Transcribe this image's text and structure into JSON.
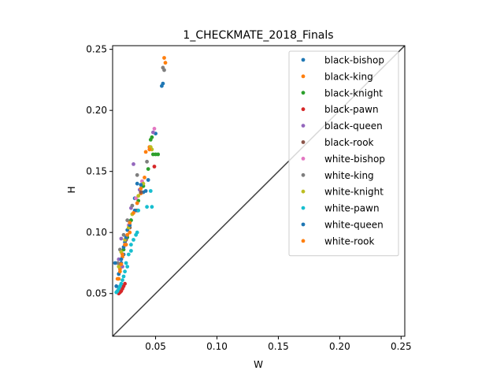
{
  "chart_data": {
    "type": "scatter",
    "title": "1_CHECKMATE_2018_Finals",
    "xlabel": "W",
    "ylabel": "H",
    "xlim": [
      0.015,
      0.253
    ],
    "ylim": [
      0.015,
      0.253
    ],
    "xticks": [
      0.05,
      0.1,
      0.15,
      0.2,
      0.25
    ],
    "xtick_labels": [
      "0.05",
      "0.10",
      "0.15",
      "0.20",
      "0.25"
    ],
    "yticks": [
      0.05,
      0.1,
      0.15,
      0.2,
      0.25
    ],
    "ytick_labels": [
      "0.05",
      "0.10",
      "0.15",
      "0.20",
      "0.25"
    ],
    "reference_line": {
      "from": [
        0.015,
        0.015
      ],
      "to": [
        0.253,
        0.253
      ],
      "color": "#3f3f3f"
    },
    "legend": {
      "placement": "top-right"
    },
    "series": [
      {
        "name": "black-bishop",
        "color": "#1f77b4",
        "points": [
          [
            0.056,
            0.222
          ],
          [
            0.055,
            0.22
          ],
          [
            0.05,
            0.181
          ],
          [
            0.035,
            0.14
          ],
          [
            0.033,
            0.128
          ],
          [
            0.027,
            0.102
          ],
          [
            0.025,
            0.092
          ],
          [
            0.022,
            0.075
          ],
          [
            0.02,
            0.066
          ],
          [
            0.024,
            0.082
          ],
          [
            0.03,
            0.11
          ],
          [
            0.04,
            0.133
          ]
        ]
      },
      {
        "name": "black-king",
        "color": "#ff7f0e",
        "points": [
          [
            0.057,
            0.243
          ],
          [
            0.058,
            0.239
          ],
          [
            0.045,
            0.17
          ],
          [
            0.042,
            0.166
          ],
          [
            0.038,
            0.132
          ],
          [
            0.034,
            0.118
          ],
          [
            0.029,
            0.1
          ],
          [
            0.026,
            0.09
          ],
          [
            0.023,
            0.08
          ],
          [
            0.021,
            0.07
          ],
          [
            0.019,
            0.062
          ]
        ]
      },
      {
        "name": "black-knight",
        "color": "#2ca02c",
        "points": [
          [
            0.047,
            0.178
          ],
          [
            0.046,
            0.176
          ],
          [
            0.05,
            0.164
          ],
          [
            0.052,
            0.164
          ],
          [
            0.048,
            0.164
          ],
          [
            0.044,
            0.152
          ],
          [
            0.04,
            0.138
          ],
          [
            0.036,
            0.126
          ],
          [
            0.03,
            0.11
          ],
          [
            0.027,
            0.096
          ],
          [
            0.024,
            0.086
          ]
        ]
      },
      {
        "name": "black-pawn",
        "color": "#d62728",
        "points": [
          [
            0.049,
            0.154
          ],
          [
            0.02,
            0.05
          ],
          [
            0.021,
            0.051
          ],
          [
            0.022,
            0.052
          ],
          [
            0.023,
            0.054
          ],
          [
            0.019,
            0.052
          ],
          [
            0.025,
            0.058
          ],
          [
            0.024,
            0.056
          ]
        ]
      },
      {
        "name": "black-queen",
        "color": "#9467bd",
        "points": [
          [
            0.048,
            0.182
          ],
          [
            0.032,
            0.156
          ],
          [
            0.037,
            0.135
          ],
          [
            0.03,
            0.12
          ],
          [
            0.022,
            0.095
          ],
          [
            0.02,
            0.078
          ],
          [
            0.023,
            0.072
          ]
        ]
      },
      {
        "name": "black-rook",
        "color": "#8c564b",
        "points": [
          [
            0.038,
            0.133
          ],
          [
            0.035,
            0.118
          ],
          [
            0.029,
            0.104
          ],
          [
            0.026,
            0.094
          ],
          [
            0.023,
            0.082
          ],
          [
            0.021,
            0.074
          ]
        ]
      },
      {
        "name": "white-bishop",
        "color": "#e377c2",
        "points": [
          [
            0.049,
            0.185
          ],
          [
            0.039,
            0.142
          ],
          [
            0.034,
            0.128
          ],
          [
            0.028,
            0.106
          ],
          [
            0.025,
            0.09
          ],
          [
            0.022,
            0.078
          ]
        ]
      },
      {
        "name": "white-king",
        "color": "#7f7f7f",
        "points": [
          [
            0.056,
            0.235
          ],
          [
            0.057,
            0.233
          ],
          [
            0.043,
            0.158
          ],
          [
            0.035,
            0.147
          ],
          [
            0.031,
            0.122
          ],
          [
            0.027,
            0.11
          ],
          [
            0.024,
            0.098
          ],
          [
            0.021,
            0.086
          ],
          [
            0.019,
            0.075
          ]
        ]
      },
      {
        "name": "white-knight",
        "color": "#bcbd22",
        "points": [
          [
            0.046,
            0.17
          ],
          [
            0.047,
            0.168
          ],
          [
            0.04,
            0.14
          ],
          [
            0.036,
            0.13
          ],
          [
            0.031,
            0.115
          ],
          [
            0.028,
            0.104
          ],
          [
            0.025,
            0.094
          ],
          [
            0.022,
            0.084
          ],
          [
            0.02,
            0.072
          ]
        ]
      },
      {
        "name": "white-pawn",
        "color": "#17becf",
        "points": [
          [
            0.046,
            0.134
          ],
          [
            0.047,
            0.121
          ],
          [
            0.043,
            0.121
          ],
          [
            0.036,
            0.118
          ],
          [
            0.035,
            0.1
          ],
          [
            0.034,
            0.098
          ],
          [
            0.03,
            0.09
          ],
          [
            0.028,
            0.082
          ],
          [
            0.026,
            0.075
          ],
          [
            0.027,
            0.072
          ],
          [
            0.025,
            0.068
          ],
          [
            0.024,
            0.064
          ],
          [
            0.023,
            0.061
          ],
          [
            0.022,
            0.058
          ],
          [
            0.021,
            0.056
          ],
          [
            0.02,
            0.054
          ],
          [
            0.019,
            0.052
          ],
          [
            0.018,
            0.051
          ],
          [
            0.03,
            0.085
          ],
          [
            0.032,
            0.094
          ]
        ]
      },
      {
        "name": "white-queen",
        "color": "#1f77b4",
        "points": [
          [
            0.044,
            0.143
          ],
          [
            0.038,
            0.139
          ],
          [
            0.042,
            0.134
          ],
          [
            0.033,
            0.118
          ],
          [
            0.029,
            0.106
          ],
          [
            0.026,
            0.096
          ],
          [
            0.024,
            0.088
          ],
          [
            0.022,
            0.078
          ],
          [
            0.017,
            0.075
          ],
          [
            0.02,
            0.066
          ],
          [
            0.018,
            0.056
          ]
        ]
      },
      {
        "name": "white-rook",
        "color": "#ff7f0e",
        "points": [
          [
            0.045,
            0.168
          ],
          [
            0.041,
            0.145
          ],
          [
            0.038,
            0.136
          ],
          [
            0.035,
            0.124
          ],
          [
            0.032,
            0.116
          ],
          [
            0.029,
            0.108
          ],
          [
            0.027,
            0.098
          ],
          [
            0.025,
            0.09
          ],
          [
            0.023,
            0.082
          ],
          [
            0.022,
            0.074
          ],
          [
            0.021,
            0.068
          ],
          [
            0.02,
            0.062
          ]
        ]
      }
    ]
  }
}
